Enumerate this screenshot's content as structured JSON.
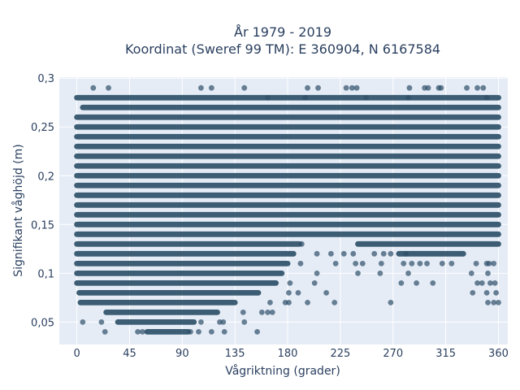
{
  "chart_data": {
    "type": "scatter",
    "title_line1": "År 1979 - 2019",
    "title_line2": "Koordinat (Sweref 99 TM): E 360904, N 6167584",
    "xlabel": "Vågriktning (grader)",
    "ylabel": "Signifikant våghöjd (m)",
    "xlim": [
      -15,
      368
    ],
    "ylim": [
      0.027,
      0.301
    ],
    "x_ticks": [
      0,
      45,
      90,
      135,
      180,
      225,
      270,
      315,
      360
    ],
    "x_tick_labels": [
      "0",
      "45",
      "90",
      "135",
      "180",
      "225",
      "270",
      "315",
      "360"
    ],
    "y_ticks": [
      0.05,
      0.1,
      0.15,
      0.2,
      0.25,
      0.3
    ],
    "y_tick_labels": [
      "0,05",
      "0,1",
      "0,15",
      "0,2",
      "0,25",
      "0,3"
    ],
    "grid": true,
    "marker_color": "#2f5069",
    "band_color": "#2e5068",
    "plot_bg": "#e5ecf6",
    "bands": [
      {
        "y": 0.28,
        "from": 0,
        "to": 360
      },
      {
        "y": 0.27,
        "from": 5,
        "to": 360
      },
      {
        "y": 0.26,
        "from": 0,
        "to": 360
      },
      {
        "y": 0.25,
        "from": 0,
        "to": 360
      },
      {
        "y": 0.24,
        "from": 0,
        "to": 360
      },
      {
        "y": 0.23,
        "from": 0,
        "to": 360
      },
      {
        "y": 0.22,
        "from": 0,
        "to": 360
      },
      {
        "y": 0.21,
        "from": 0,
        "to": 360
      },
      {
        "y": 0.2,
        "from": 0,
        "to": 360
      },
      {
        "y": 0.19,
        "from": 0,
        "to": 360
      },
      {
        "y": 0.18,
        "from": 0,
        "to": 360
      },
      {
        "y": 0.17,
        "from": 0,
        "to": 360
      },
      {
        "y": 0.16,
        "from": 0,
        "to": 360
      },
      {
        "y": 0.15,
        "from": 0,
        "to": 360
      },
      {
        "y": 0.14,
        "from": 0,
        "to": 360
      },
      {
        "y": 0.13,
        "from": 0,
        "to": 190
      },
      {
        "y": 0.13,
        "from": 240,
        "to": 360
      },
      {
        "y": 0.12,
        "from": 0,
        "to": 185
      },
      {
        "y": 0.12,
        "from": 275,
        "to": 330
      },
      {
        "y": 0.11,
        "from": 0,
        "to": 180
      },
      {
        "y": 0.1,
        "from": 0,
        "to": 175
      },
      {
        "y": 0.09,
        "from": 0,
        "to": 170
      },
      {
        "y": 0.08,
        "from": 2,
        "to": 155
      },
      {
        "y": 0.07,
        "from": 3,
        "to": 135
      },
      {
        "y": 0.06,
        "from": 25,
        "to": 120
      },
      {
        "y": 0.05,
        "from": 35,
        "to": 100
      },
      {
        "y": 0.04,
        "from": 60,
        "to": 95
      }
    ],
    "points": [
      [
        14,
        0.29
      ],
      [
        27,
        0.29
      ],
      [
        106,
        0.29
      ],
      [
        115,
        0.29
      ],
      [
        143,
        0.29
      ],
      [
        197,
        0.29
      ],
      [
        206,
        0.29
      ],
      [
        230,
        0.29
      ],
      [
        235,
        0.29
      ],
      [
        239,
        0.29
      ],
      [
        284,
        0.29
      ],
      [
        297,
        0.29
      ],
      [
        300,
        0.29
      ],
      [
        309,
        0.29
      ],
      [
        311,
        0.29
      ],
      [
        333,
        0.29
      ],
      [
        342,
        0.29
      ],
      [
        347,
        0.29
      ],
      [
        163,
        0.28
      ],
      [
        195,
        0.28
      ],
      [
        247,
        0.28
      ],
      [
        283,
        0.28
      ],
      [
        350,
        0.28
      ],
      [
        192,
        0.13
      ],
      [
        205,
        0.12
      ],
      [
        217,
        0.12
      ],
      [
        228,
        0.12
      ],
      [
        236,
        0.12
      ],
      [
        254,
        0.12
      ],
      [
        262,
        0.12
      ],
      [
        268,
        0.12
      ],
      [
        281,
        0.12
      ],
      [
        191,
        0.11
      ],
      [
        221,
        0.11
      ],
      [
        238,
        0.11
      ],
      [
        244,
        0.11
      ],
      [
        260,
        0.11
      ],
      [
        279,
        0.11
      ],
      [
        286,
        0.11
      ],
      [
        293,
        0.11
      ],
      [
        299,
        0.11
      ],
      [
        312,
        0.11
      ],
      [
        320,
        0.11
      ],
      [
        341,
        0.11
      ],
      [
        350,
        0.11
      ],
      [
        352,
        0.11
      ],
      [
        356,
        0.11
      ],
      [
        205,
        0.1
      ],
      [
        240,
        0.1
      ],
      [
        259,
        0.1
      ],
      [
        283,
        0.1
      ],
      [
        337,
        0.1
      ],
      [
        351,
        0.1
      ],
      [
        182,
        0.09
      ],
      [
        203,
        0.09
      ],
      [
        277,
        0.09
      ],
      [
        290,
        0.09
      ],
      [
        304,
        0.09
      ],
      [
        342,
        0.09
      ],
      [
        346,
        0.09
      ],
      [
        353,
        0.09
      ],
      [
        357,
        0.09
      ],
      [
        181,
        0.08
      ],
      [
        189,
        0.08
      ],
      [
        213,
        0.08
      ],
      [
        338,
        0.08
      ],
      [
        350,
        0.08
      ],
      [
        358,
        0.08
      ],
      [
        165,
        0.07
      ],
      [
        178,
        0.07
      ],
      [
        181,
        0.07
      ],
      [
        197,
        0.07
      ],
      [
        220,
        0.07
      ],
      [
        268,
        0.07
      ],
      [
        351,
        0.07
      ],
      [
        356,
        0.07
      ],
      [
        360,
        0.07
      ],
      [
        142,
        0.06
      ],
      [
        158,
        0.06
      ],
      [
        163,
        0.06
      ],
      [
        167,
        0.06
      ],
      [
        5,
        0.05
      ],
      [
        21,
        0.05
      ],
      [
        106,
        0.05
      ],
      [
        122,
        0.05
      ],
      [
        125,
        0.05
      ],
      [
        143,
        0.05
      ],
      [
        24,
        0.04
      ],
      [
        52,
        0.04
      ],
      [
        56,
        0.04
      ],
      [
        97,
        0.04
      ],
      [
        104,
        0.04
      ],
      [
        115,
        0.04
      ],
      [
        126,
        0.04
      ],
      [
        154,
        0.04
      ]
    ]
  }
}
